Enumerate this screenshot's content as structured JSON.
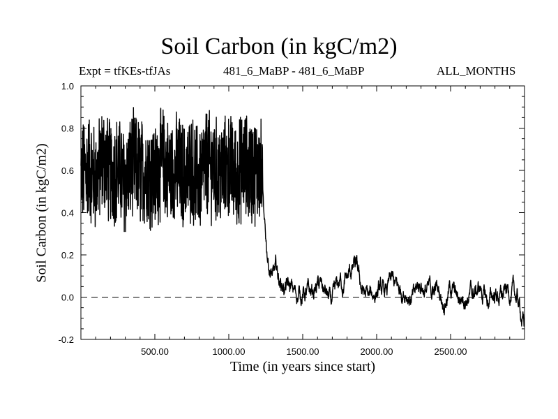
{
  "chart_data": {
    "type": "line",
    "title": "Soil Carbon (in kgC/m2)",
    "annotations": {
      "left": "Expt = tfKEs-tfJAs",
      "center": "481_6_MaBP - 481_6_MaBP",
      "right": "ALL_MONTHS"
    },
    "xlabel": "Time (in years since start)",
    "ylabel": "Soil Carbon (in kgC/m2)",
    "xlim": [
      0,
      3000
    ],
    "ylim": [
      -0.2,
      1.0
    ],
    "xticks": [
      500,
      1000,
      1500,
      2000,
      2500
    ],
    "xtick_labels": [
      "500.00",
      "1000.00",
      "1500.00",
      "2000.00",
      "2500.00"
    ],
    "yticks": [
      -0.2,
      0.0,
      0.2,
      0.4,
      0.6,
      0.8,
      1.0
    ],
    "ytick_labels": [
      "-0.2",
      "0.0",
      "0.2",
      "0.4",
      "0.6",
      "0.8",
      "1.0"
    ],
    "reference_line": {
      "y": 0.0,
      "style": "dashed"
    },
    "grid": false,
    "color": "#000000",
    "series": [
      {
        "x": [
          0,
          50,
          100,
          150,
          200,
          250,
          300,
          350,
          400,
          450,
          500,
          550,
          600,
          650,
          700,
          750,
          800,
          850,
          900,
          950,
          1000,
          1050,
          1100,
          1150,
          1200,
          1225,
          1240,
          1260,
          1280,
          1300,
          1320,
          1350,
          1400,
          1450,
          1500,
          1550,
          1600,
          1650,
          1700,
          1750,
          1800,
          1850,
          1870,
          1900,
          1950,
          2000,
          2050,
          2100,
          2150,
          2200,
          2250,
          2300,
          2350,
          2400,
          2450,
          2500,
          2550,
          2600,
          2650,
          2700,
          2750,
          2800,
          2850,
          2900,
          2950,
          3000
        ],
        "values": [
          0.57,
          0.62,
          0.55,
          0.66,
          0.58,
          0.61,
          0.54,
          0.63,
          0.59,
          0.6,
          0.56,
          0.65,
          0.58,
          0.62,
          0.57,
          0.61,
          0.55,
          0.64,
          0.6,
          0.58,
          0.62,
          0.57,
          0.63,
          0.59,
          0.61,
          0.58,
          0.3,
          0.2,
          0.14,
          0.09,
          0.11,
          0.07,
          0.04,
          0.01,
          0.03,
          0.0,
          0.05,
          0.02,
          -0.05,
          0.06,
          0.08,
          0.14,
          0.1,
          0.03,
          -0.02,
          0.04,
          0.0,
          0.06,
          0.02,
          0.05,
          -0.01,
          0.07,
          0.02,
          0.04,
          0.0,
          0.05,
          -0.02,
          0.03,
          0.01,
          0.04,
          -0.03,
          0.02,
          0.0,
          0.03,
          -0.01,
          -0.14
        ]
      }
    ]
  }
}
